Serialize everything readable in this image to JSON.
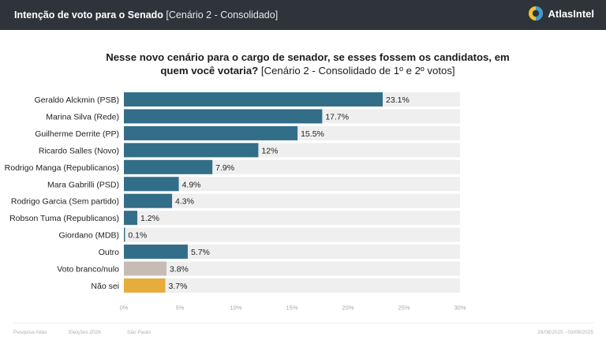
{
  "header": {
    "title_bold": "Intenção de voto para o Senado",
    "title_light": "[Cenário 2 - Consolidado]",
    "brand": "AtlasIntel",
    "logo_icon": "atlasintel-logo-icon"
  },
  "question": {
    "bold": "Nesse novo cenário para o cargo de senador, se esses fossem os candidatos, em quem você votaria?",
    "light": "[Cenário 2 - Consolidado de 1º e 2º votos]"
  },
  "chart_data": {
    "type": "bar",
    "orientation": "horizontal",
    "title": "",
    "xlabel": "",
    "ylabel": "",
    "xlim": [
      0,
      30
    ],
    "ticks": [
      0,
      5,
      10,
      15,
      20,
      25,
      30
    ],
    "tick_labels": [
      "0%",
      "5%",
      "10%",
      "15%",
      "20%",
      "25%",
      "30%"
    ],
    "categories": [
      "Geraldo Alckmin (PSB)",
      "Marina Silva (Rede)",
      "Guilherme Derrite (PP)",
      "Ricardo Salles (Novo)",
      "Rodrigo Manga (Republicanos)",
      "Mara Gabrilli (PSD)",
      "Rodrigo Garcia (Sem partido)",
      "Robson Tuma (Republicanos)",
      "Giordano (MDB)",
      "Outro",
      "Voto branco/nulo",
      "Não sei"
    ],
    "values": [
      23.1,
      17.7,
      15.5,
      12,
      7.9,
      4.9,
      4.3,
      1.2,
      0.1,
      5.7,
      3.8,
      3.7
    ],
    "value_labels": [
      "23.1%",
      "17.7%",
      "15.5%",
      "12%",
      "7.9%",
      "4.9%",
      "4.3%",
      "1.2%",
      "0.1%",
      "5.7%",
      "3.8%",
      "3.7%"
    ],
    "colors": [
      "#336e89",
      "#336e89",
      "#336e89",
      "#336e89",
      "#336e89",
      "#336e89",
      "#336e89",
      "#336e89",
      "#336e89",
      "#336e89",
      "#c7bcb5",
      "#e6ac3c"
    ],
    "track_color": "#efefef",
    "grid": false,
    "legend": "none"
  },
  "footer": {
    "source": "Pesquisa Atlas",
    "topic": "Eleições 2026",
    "region": "São Paulo",
    "dates": "29/08/2025 - 03/09/2025"
  }
}
